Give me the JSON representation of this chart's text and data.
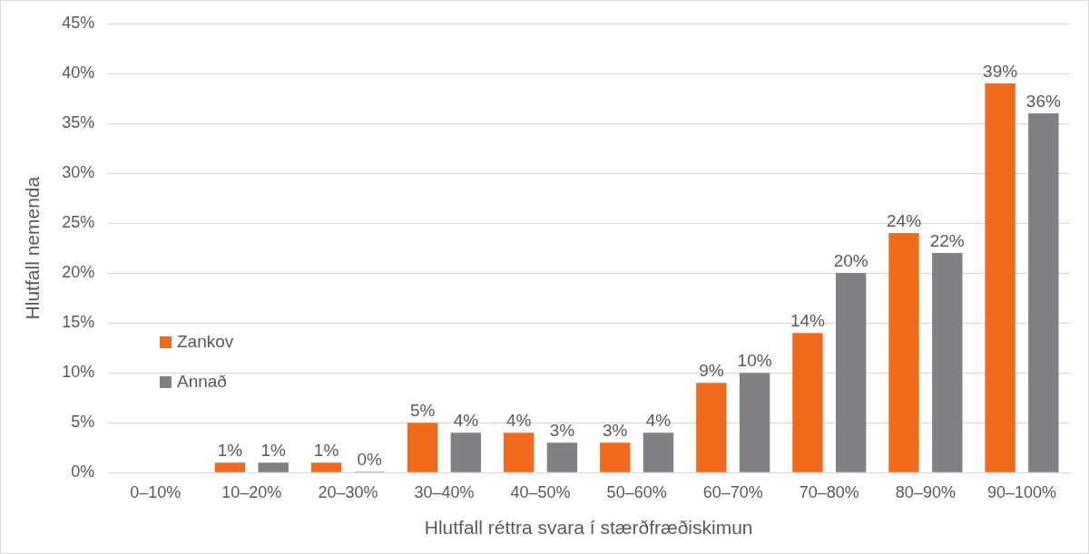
{
  "chart_data": {
    "type": "bar",
    "xlabel": "Hlutfall réttra svara í stærðfræðiskimun",
    "ylabel": "Hlutfall nemenda",
    "categories": [
      "0–10%",
      "10–20%",
      "20–30%",
      "30–40%",
      "40–50%",
      "50–60%",
      "60–70%",
      "70–80%",
      "80–90%",
      "90–100%"
    ],
    "series": [
      {
        "name": "Zankov",
        "color": "#f26b1d",
        "values": [
          null,
          1,
          1,
          5,
          4,
          3,
          9,
          14,
          24,
          39
        ],
        "value_labels": [
          null,
          "1%",
          "1%",
          "5%",
          "4%",
          "3%",
          "9%",
          "14%",
          "24%",
          "39%"
        ]
      },
      {
        "name": "Annað",
        "color": "#808085",
        "values": [
          null,
          1,
          0,
          4,
          3,
          4,
          10,
          20,
          22,
          36
        ],
        "value_labels": [
          null,
          "1%",
          "0%",
          "4%",
          "3%",
          "4%",
          "10%",
          "20%",
          "22%",
          "36%"
        ]
      }
    ],
    "ylim": [
      0,
      45
    ],
    "yticks": [
      {
        "value": 0,
        "label": "0%"
      },
      {
        "value": 5,
        "label": "5%"
      },
      {
        "value": 10,
        "label": "10%"
      },
      {
        "value": 15,
        "label": "15%"
      },
      {
        "value": 20,
        "label": "20%"
      },
      {
        "value": 25,
        "label": "25%"
      },
      {
        "value": 30,
        "label": "30%"
      },
      {
        "value": 35,
        "label": "35%"
      },
      {
        "value": 40,
        "label": "40%"
      },
      {
        "value": 45,
        "label": "45%"
      }
    ],
    "grid": "y",
    "legend": "left"
  }
}
